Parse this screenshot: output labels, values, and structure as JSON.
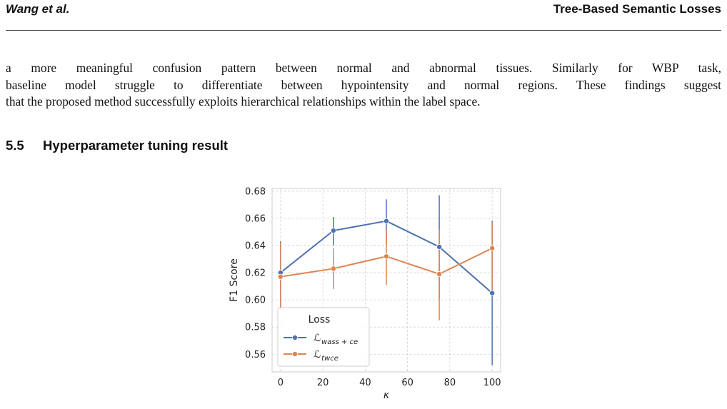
{
  "header": {
    "authors": "Wang et al.",
    "title": "Tree-Based Semantic Losses"
  },
  "paragraph": {
    "lines": [
      "a more meaningful confusion pattern between normal and abnormal tissues. Similarly for WBP task,",
      "baseline model struggle to differentiate between hypointensity and normal regions. These findings suggest",
      "that the proposed method successfully exploits hierarchical relationships within the label space."
    ]
  },
  "section": {
    "number": "5.5",
    "title": "Hyperparameter tuning result"
  },
  "chart_data": {
    "type": "line",
    "xlabel": "κ",
    "ylabel": "F1 Score",
    "x": [
      0,
      25,
      50,
      75,
      100
    ],
    "xticks": [
      "0",
      "20",
      "40",
      "60",
      "80",
      "100"
    ],
    "xtick_values": [
      0,
      20,
      40,
      60,
      80,
      100
    ],
    "yticks": [
      "0.56",
      "0.58",
      "0.60",
      "0.62",
      "0.64",
      "0.66",
      "0.68"
    ],
    "ytick_values": [
      0.56,
      0.58,
      0.6,
      0.62,
      0.64,
      0.66,
      0.68
    ],
    "xlim": [
      -4,
      104
    ],
    "ylim": [
      0.547,
      0.682
    ],
    "grid": true,
    "legend": {
      "title": "Loss",
      "placement": "lower-left"
    },
    "series": [
      {
        "name_main": "ℒ",
        "name_sub": "wass + ce",
        "color": "#4c72b0",
        "values": [
          0.62,
          0.651,
          0.658,
          0.639,
          0.605
        ],
        "err_low": [
          0.594,
          0.64,
          0.641,
          0.601,
          0.552
        ],
        "err_high": [
          0.643,
          0.661,
          0.674,
          0.677,
          0.658
        ]
      },
      {
        "name_main": "ℒ",
        "name_sub": "twce",
        "color": "#dd8452",
        "values": [
          0.617,
          0.623,
          0.632,
          0.619,
          0.638
        ],
        "err_low": [
          0.593,
          0.608,
          0.611,
          0.585,
          0.604
        ],
        "err_high": [
          0.642,
          0.638,
          0.652,
          0.652,
          0.657
        ]
      }
    ]
  }
}
